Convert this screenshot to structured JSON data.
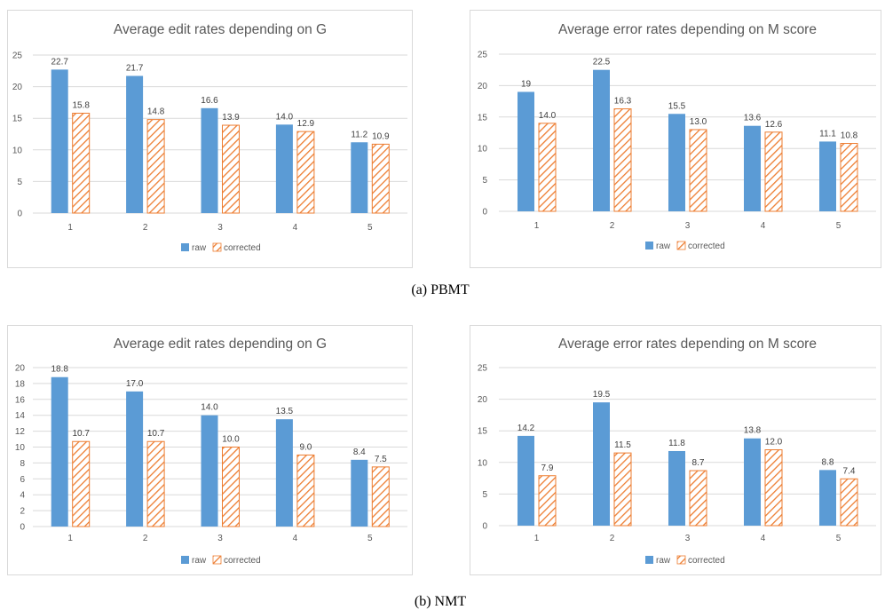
{
  "colors": {
    "raw": "#5b9bd5",
    "corrected": "#ed7d31"
  },
  "captions": {
    "a": "(a)  PBMT",
    "b": "(b)  NMT"
  },
  "chart_data": [
    {
      "id": "pbmt-edit",
      "type": "bar",
      "title": "Average edit rates depending on G",
      "categories": [
        "1",
        "2",
        "3",
        "4",
        "5"
      ],
      "yticks": [
        0,
        5,
        10,
        15,
        20,
        25
      ],
      "ylim": [
        0,
        25
      ],
      "series": [
        {
          "name": "raw",
          "values": [
            22.7,
            21.7,
            16.6,
            14.0,
            11.2
          ],
          "labels": [
            "22.7",
            "21.7",
            "16.6",
            "14.0",
            "11.2"
          ]
        },
        {
          "name": "corrected",
          "values": [
            15.8,
            14.8,
            13.9,
            12.9,
            10.9
          ],
          "labels": [
            "15.8",
            "14.8",
            "13.9",
            "12.9",
            "10.9"
          ]
        }
      ],
      "legend_position": "bottom",
      "grid": true
    },
    {
      "id": "pbmt-error",
      "type": "bar",
      "title": "Average error rates depending on M score",
      "categories": [
        "1",
        "2",
        "3",
        "4",
        "5"
      ],
      "yticks": [
        0,
        5,
        10,
        15,
        20,
        25
      ],
      "ylim": [
        0,
        25
      ],
      "series": [
        {
          "name": "raw",
          "values": [
            19,
            22.5,
            15.5,
            13.6,
            11.1
          ],
          "labels": [
            "19",
            "22.5",
            "15.5",
            "13.6",
            "11.1"
          ]
        },
        {
          "name": "corrected",
          "values": [
            14.0,
            16.3,
            13.0,
            12.6,
            10.8
          ],
          "labels": [
            "14.0",
            "16.3",
            "13.0",
            "12.6",
            "10.8"
          ]
        }
      ],
      "legend_position": "bottom",
      "grid": true
    },
    {
      "id": "nmt-edit",
      "type": "bar",
      "title": "Average edit rates depending on G",
      "categories": [
        "1",
        "2",
        "3",
        "4",
        "5"
      ],
      "yticks": [
        0,
        2,
        4,
        6,
        8,
        10,
        12,
        14,
        16,
        18,
        20
      ],
      "ylim": [
        0,
        20
      ],
      "series": [
        {
          "name": "raw",
          "values": [
            18.8,
            17.0,
            14.0,
            13.5,
            8.4
          ],
          "labels": [
            "18.8",
            "17.0",
            "14.0",
            "13.5",
            "8.4"
          ]
        },
        {
          "name": "corrected",
          "values": [
            10.7,
            10.7,
            10.0,
            9.0,
            7.5
          ],
          "labels": [
            "10.7",
            "10.7",
            "10.0",
            "9.0",
            "7.5"
          ]
        }
      ],
      "legend_position": "bottom",
      "grid": true
    },
    {
      "id": "nmt-error",
      "type": "bar",
      "title": "Average error rates depending on M score",
      "categories": [
        "1",
        "2",
        "3",
        "4",
        "5"
      ],
      "yticks": [
        0,
        5,
        10,
        15,
        20,
        25
      ],
      "ylim": [
        0,
        25
      ],
      "series": [
        {
          "name": "raw",
          "values": [
            14.2,
            19.5,
            11.8,
            13.8,
            8.8
          ],
          "labels": [
            "14.2",
            "19.5",
            "11.8",
            "13.8",
            "8.8"
          ]
        },
        {
          "name": "corrected",
          "values": [
            7.9,
            11.5,
            8.7,
            12.0,
            7.4
          ],
          "labels": [
            "7.9",
            "11.5",
            "8.7",
            "12.0",
            "7.4"
          ]
        }
      ],
      "legend_position": "bottom",
      "grid": true
    }
  ]
}
